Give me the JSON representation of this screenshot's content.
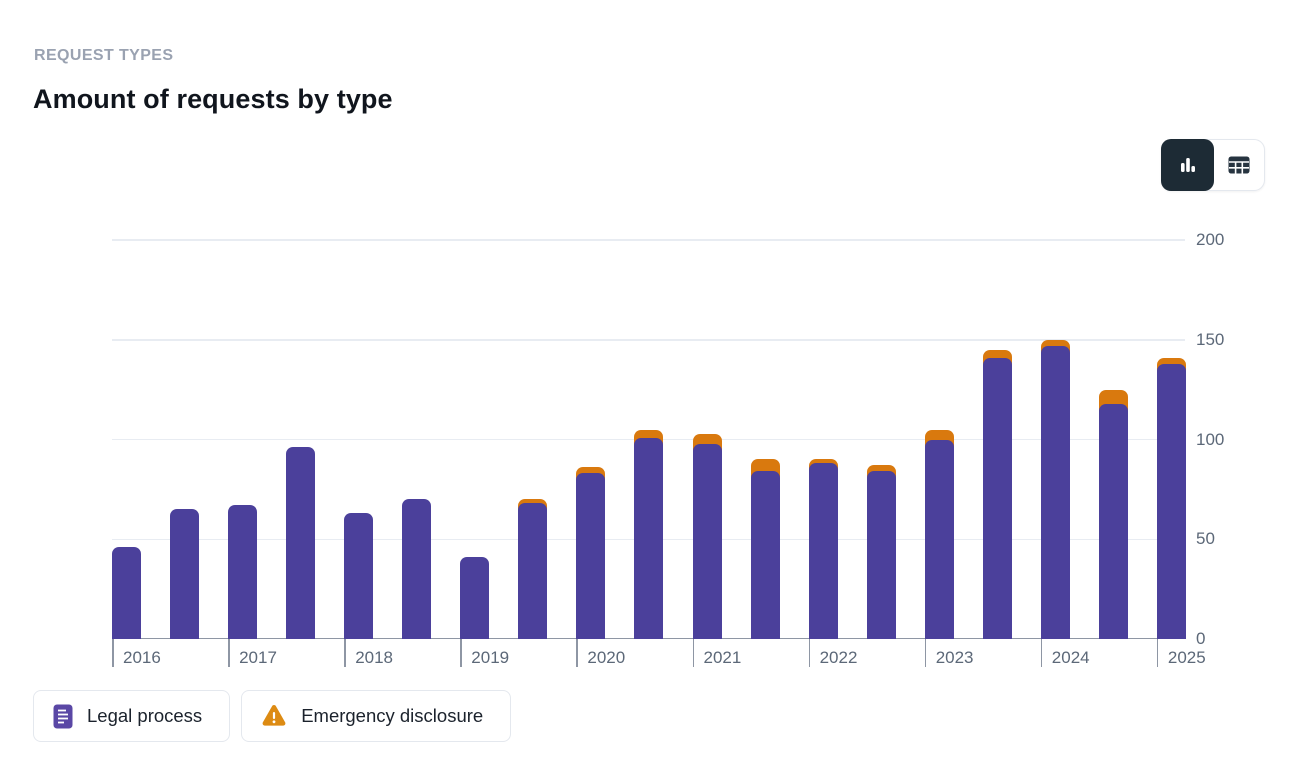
{
  "header": {
    "eyebrow": "REQUEST TYPES",
    "title": "Amount of requests by type"
  },
  "view_toggle": {
    "selected": "chart",
    "buttons": [
      {
        "name": "chart-view",
        "icon": "bar-chart-icon"
      },
      {
        "name": "table-view",
        "icon": "table-icon"
      }
    ]
  },
  "legend": [
    {
      "label": "Legal process",
      "icon": "document-icon",
      "icon_color": "#5a47a5"
    },
    {
      "label": "Emergency disclosure",
      "icon": "warning-triangle-icon",
      "icon_color": "#dd8b13"
    }
  ],
  "colors": {
    "legal_process": "#4b409b",
    "emergency_disclosure": "#d9790e",
    "grid": "#e8ecf2",
    "axis": "#8e96a4",
    "tick_label": "#5c6878",
    "dark_button": "#1d2b35"
  },
  "chart_data": {
    "type": "bar",
    "stacked": true,
    "title": "Amount of requests by type",
    "xlabel": "",
    "ylabel": "",
    "ylim": [
      0,
      200
    ],
    "y_ticks": [
      0,
      50,
      100,
      150,
      200
    ],
    "grid": true,
    "legend_position": "bottom-left",
    "x_unit": "two bars per year (half-year periods)",
    "series_names": [
      "Legal process",
      "Emergency disclosure"
    ],
    "groups": [
      {
        "year": "2016",
        "bars": [
          {
            "legal_process": 46,
            "emergency_disclosure": 0
          },
          {
            "legal_process": 65,
            "emergency_disclosure": 0
          }
        ]
      },
      {
        "year": "2017",
        "bars": [
          {
            "legal_process": 67,
            "emergency_disclosure": 0
          },
          {
            "legal_process": 96,
            "emergency_disclosure": 0
          }
        ]
      },
      {
        "year": "2018",
        "bars": [
          {
            "legal_process": 63,
            "emergency_disclosure": 0
          },
          {
            "legal_process": 70,
            "emergency_disclosure": 0
          }
        ]
      },
      {
        "year": "2019",
        "bars": [
          {
            "legal_process": 41,
            "emergency_disclosure": 0
          },
          {
            "legal_process": 68,
            "emergency_disclosure": 2
          }
        ]
      },
      {
        "year": "2020",
        "bars": [
          {
            "legal_process": 83,
            "emergency_disclosure": 3
          },
          {
            "legal_process": 101,
            "emergency_disclosure": 4
          }
        ]
      },
      {
        "year": "2021",
        "bars": [
          {
            "legal_process": 98,
            "emergency_disclosure": 5
          },
          {
            "legal_process": 84,
            "emergency_disclosure": 6
          }
        ]
      },
      {
        "year": "2022",
        "bars": [
          {
            "legal_process": 88,
            "emergency_disclosure": 2
          },
          {
            "legal_process": 84,
            "emergency_disclosure": 3
          }
        ]
      },
      {
        "year": "2023",
        "bars": [
          {
            "legal_process": 100,
            "emergency_disclosure": 5
          },
          {
            "legal_process": 141,
            "emergency_disclosure": 4
          }
        ]
      },
      {
        "year": "2024",
        "bars": [
          {
            "legal_process": 147,
            "emergency_disclosure": 3
          },
          {
            "legal_process": 118,
            "emergency_disclosure": 7
          }
        ]
      },
      {
        "year": "2025",
        "bars": [
          {
            "legal_process": 138,
            "emergency_disclosure": 3
          }
        ]
      }
    ]
  }
}
